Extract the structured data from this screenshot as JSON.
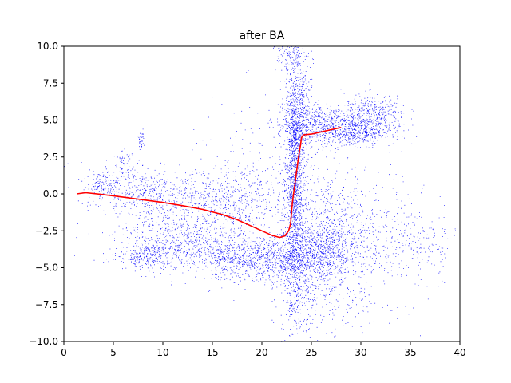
{
  "chart_data": {
    "type": "scatter",
    "title": "after BA",
    "xlabel": "",
    "ylabel": "",
    "xlim": [
      0,
      40
    ],
    "ylim": [
      -10,
      10
    ],
    "grid": false,
    "xticks": [
      0,
      5,
      10,
      15,
      20,
      25,
      30,
      35,
      40
    ],
    "yticks": [
      -10.0,
      -7.5,
      -5.0,
      -2.5,
      0.0,
      2.5,
      5.0,
      7.5,
      10.0
    ],
    "xtick_labels": [
      "0",
      "5",
      "10",
      "15",
      "20",
      "25",
      "30",
      "35",
      "40"
    ],
    "ytick_labels": [
      "−10.0",
      "−7.5",
      "−5.0",
      "−2.5",
      "0.0",
      "2.5",
      "5.0",
      "7.5",
      "10.0"
    ],
    "series": [
      {
        "kind": "points",
        "color": "#0000ff",
        "clusters": [
          {
            "cx": 23.3,
            "cy": 0.5,
            "sx": 0.5,
            "sy": 3.8,
            "n": 1400
          },
          {
            "cx": 23.7,
            "cy": 6.5,
            "sx": 0.7,
            "sy": 2.2,
            "n": 450
          },
          {
            "cx": 27.0,
            "cy": 4.6,
            "sx": 2.6,
            "sy": 0.7,
            "n": 850
          },
          {
            "cx": 31.5,
            "cy": 5.5,
            "sx": 1.6,
            "sy": 0.6,
            "n": 300
          },
          {
            "cx": 30.0,
            "cy": 4.1,
            "sx": 1.6,
            "sy": 0.4,
            "n": 250
          },
          {
            "cx": 26.0,
            "cy": -4.0,
            "sx": 1.8,
            "sy": 1.0,
            "n": 700
          },
          {
            "cx": 22.0,
            "cy": -4.5,
            "sx": 2.3,
            "sy": 0.8,
            "n": 600
          },
          {
            "cx": 17.5,
            "cy": -4.4,
            "sx": 2.0,
            "sy": 0.7,
            "n": 500
          },
          {
            "cx": 12.0,
            "cy": -3.2,
            "sx": 3.5,
            "sy": 1.0,
            "n": 700
          },
          {
            "cx": 8.5,
            "cy": -4.2,
            "sx": 1.5,
            "sy": 0.5,
            "n": 250
          },
          {
            "cx": 10.5,
            "cy": -0.2,
            "sx": 3.0,
            "sy": 0.9,
            "n": 400
          },
          {
            "cx": 17.0,
            "cy": -0.5,
            "sx": 2.5,
            "sy": 1.0,
            "n": 400
          },
          {
            "cx": 6.5,
            "cy": 0.6,
            "sx": 2.5,
            "sy": 0.8,
            "n": 250
          },
          {
            "cx": 23.8,
            "cy": -6.8,
            "sx": 1.0,
            "sy": 1.3,
            "n": 220
          },
          {
            "cx": 26.5,
            "cy": -1.5,
            "sx": 2.0,
            "sy": 1.5,
            "n": 300
          },
          {
            "cx": 31.0,
            "cy": -2.5,
            "sx": 3.0,
            "sy": 2.0,
            "n": 400
          },
          {
            "cx": 20.0,
            "cy": 0.5,
            "sx": 4.0,
            "sy": 3.0,
            "n": 250
          },
          {
            "cx": 28.0,
            "cy": -7.0,
            "sx": 2.5,
            "sy": 1.5,
            "n": 180
          },
          {
            "cx": 7.8,
            "cy": 3.6,
            "sx": 0.2,
            "sy": 0.4,
            "n": 40
          },
          {
            "cx": 6.0,
            "cy": 2.4,
            "sx": 0.4,
            "sy": 0.4,
            "n": 40
          },
          {
            "cx": 4.0,
            "cy": 0.6,
            "sx": 0.6,
            "sy": 0.5,
            "n": 80
          },
          {
            "cx": 36.0,
            "cy": -3.5,
            "sx": 1.8,
            "sy": 1.5,
            "n": 120
          },
          {
            "cx": 22.5,
            "cy": 9.3,
            "sx": 0.6,
            "sy": 0.5,
            "n": 80
          }
        ]
      },
      {
        "kind": "line",
        "name": "",
        "color": "#ff0000",
        "x": [
          1.3,
          2.2,
          4.0,
          6.0,
          8.0,
          10.0,
          12.0,
          14.0,
          16.0,
          17.5,
          19.0,
          20.0,
          21.0,
          21.8,
          22.3,
          22.7,
          22.9,
          23.0,
          23.1,
          23.3,
          23.5,
          23.7,
          23.9,
          24.0,
          24.2,
          25.0,
          26.0,
          27.0,
          28.0
        ],
        "y": [
          0.0,
          0.08,
          -0.05,
          -0.22,
          -0.4,
          -0.58,
          -0.8,
          -1.05,
          -1.4,
          -1.75,
          -2.2,
          -2.5,
          -2.8,
          -2.95,
          -2.85,
          -2.5,
          -2.0,
          -1.2,
          -0.5,
          0.5,
          1.5,
          2.5,
          3.3,
          3.8,
          4.0,
          4.05,
          4.2,
          4.35,
          4.5
        ]
      }
    ]
  }
}
